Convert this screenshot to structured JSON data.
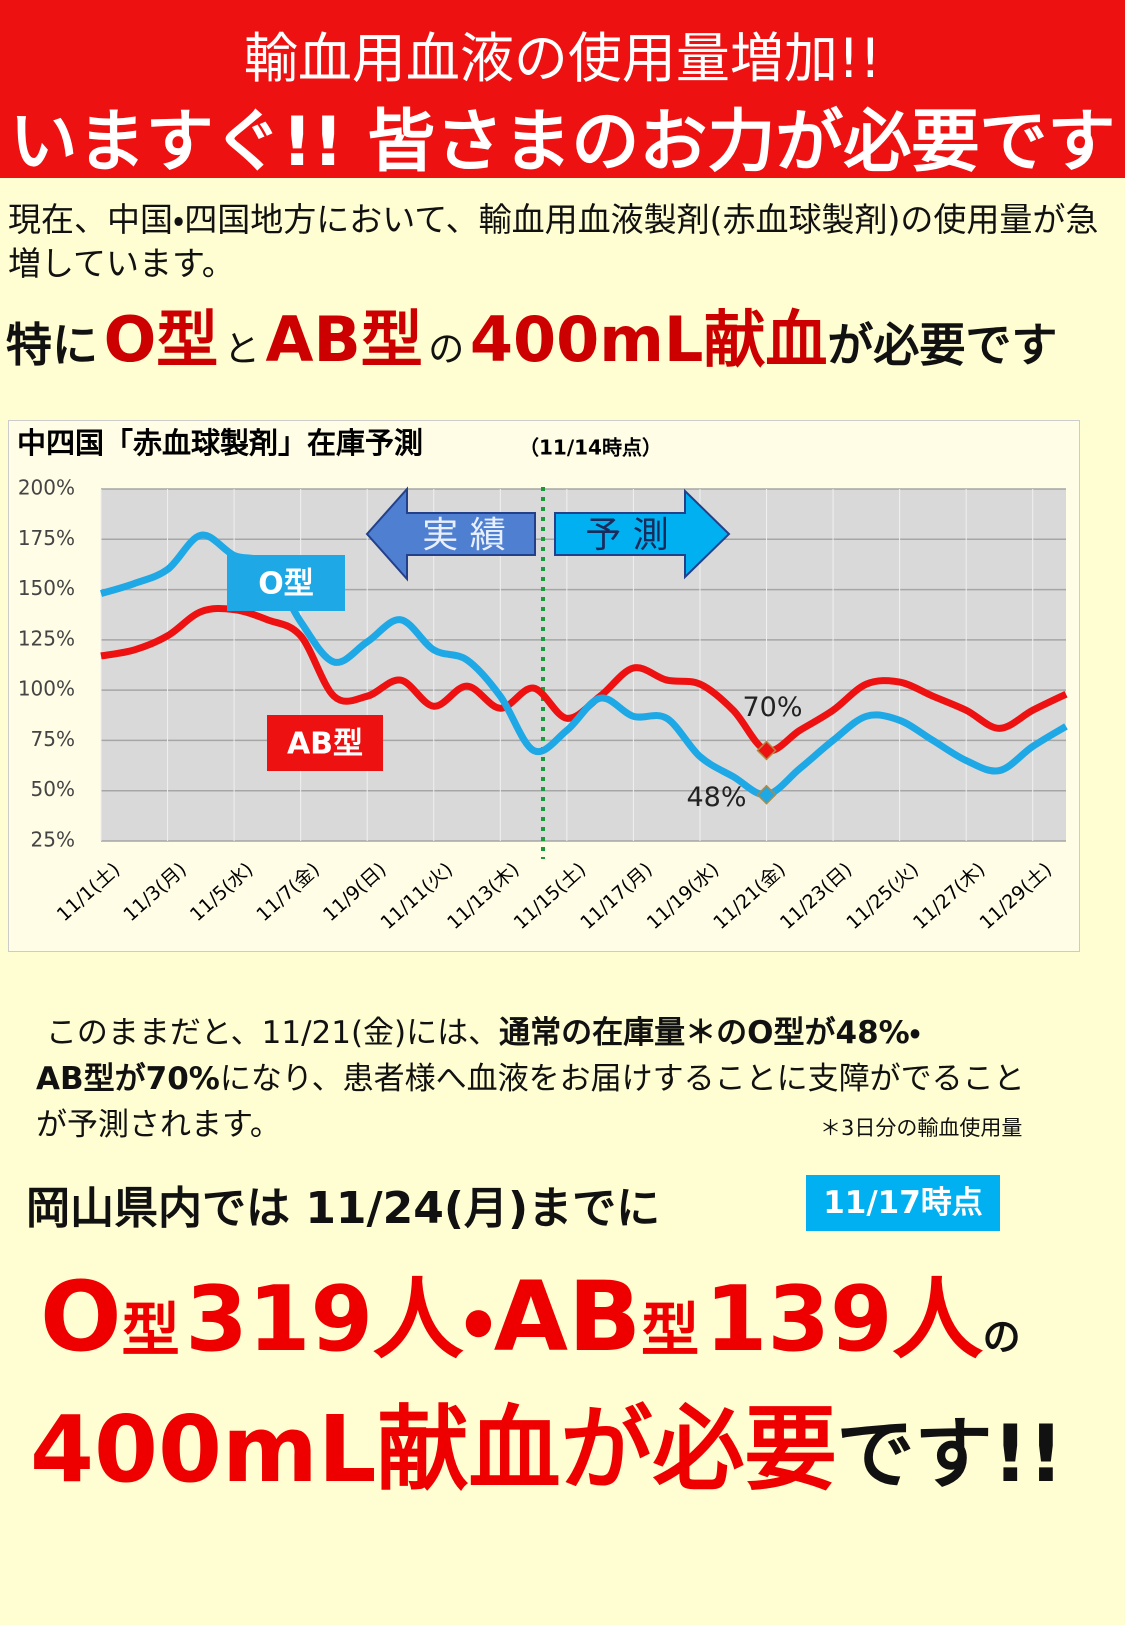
{
  "header": {
    "line1": "輸血用血液の使用量増加!!",
    "line2": "いますぐ!! 皆さまのお力が必要です"
  },
  "intro": "現在、中国・四国地方において、輸血用血液製剤(赤血球製剤)の使用量が急増しています。",
  "highlight": [
    "特に",
    "O型",
    "と",
    "AB型",
    "の",
    "400mL献血",
    "が必要です"
  ],
  "chart_data": {
    "type": "line",
    "title": "中四国「赤血球製剤」在庫予測",
    "subtitle": "（11/14時点）",
    "categories": [
      "11/1(土)",
      null,
      "11/3(月)",
      null,
      "11/5(水)",
      null,
      "11/7(金)",
      null,
      "11/9(日)",
      null,
      "11/11(火)",
      null,
      "11/13(木)",
      null,
      "11/15(土)",
      null,
      "11/17(月)",
      null,
      "11/19(水)",
      null,
      "11/21(金)",
      null,
      "11/23(日)",
      null,
      "11/25(火)",
      null,
      "11/27(木)",
      null,
      "11/29(土)",
      null
    ],
    "series": [
      {
        "name": "O型",
        "color": "#1fa8e6",
        "values": [
          148,
          153,
          160,
          177,
          167,
          162,
          134,
          114,
          124,
          135,
          120,
          115,
          97,
          70,
          80,
          96,
          87,
          86,
          67,
          57,
          48,
          61,
          75,
          87,
          85,
          75,
          65,
          60,
          72,
          82
        ],
        "value_labels": [
          null,
          null,
          null,
          null,
          null,
          null,
          null,
          null,
          null,
          null,
          null,
          null,
          null,
          null,
          null,
          null,
          null,
          null,
          null,
          null,
          "48%",
          null,
          null,
          null,
          null,
          null,
          null,
          null,
          null,
          null
        ]
      },
      {
        "name": "AB型",
        "color": "#ee1111",
        "values": [
          117,
          120,
          127,
          139,
          140,
          135,
          127,
          97,
          97,
          105,
          92,
          102,
          91,
          101,
          86,
          97,
          111,
          105,
          103,
          90,
          70,
          80,
          90,
          103,
          104,
          97,
          90,
          81,
          90,
          98
        ],
        "value_labels": [
          null,
          null,
          null,
          null,
          null,
          null,
          null,
          null,
          null,
          null,
          null,
          null,
          null,
          null,
          null,
          null,
          null,
          null,
          null,
          null,
          "70%",
          null,
          null,
          null,
          null,
          null,
          null,
          null,
          null,
          null
        ]
      }
    ],
    "ylim": [
      25,
      200
    ],
    "yticks": [
      {
        "value": 25,
        "label": "25%"
      },
      {
        "value": 50,
        "label": "50%"
      },
      {
        "value": 75,
        "label": "75%"
      },
      {
        "value": 100,
        "label": "100%"
      },
      {
        "value": 125,
        "label": "125%"
      },
      {
        "value": 150,
        "label": "150%"
      },
      {
        "value": 175,
        "label": "175%"
      },
      {
        "value": 200,
        "label": "200%"
      }
    ],
    "grid": true,
    "annotations": [
      "実 績",
      "予 測"
    ]
  },
  "notice": {
    "segments": [
      "このままだと、11/21(金)には、",
      "通常の在庫量＊のO型が48%・",
      "AB型が70%",
      "になり、患者様へ血液をお届けすることに支障がでることが予測されます。"
    ],
    "footnote": "＊3日分の輸血使用量"
  },
  "okayama": {
    "text": "岡山県内では 11/24(月)までに",
    "badge": "11/17時点"
  },
  "need": {
    "line1": [
      "O",
      "型",
      "319人",
      "・",
      "AB",
      "型",
      "139人",
      "の"
    ],
    "line2": [
      "400mL献血が必要",
      "です!!"
    ]
  }
}
